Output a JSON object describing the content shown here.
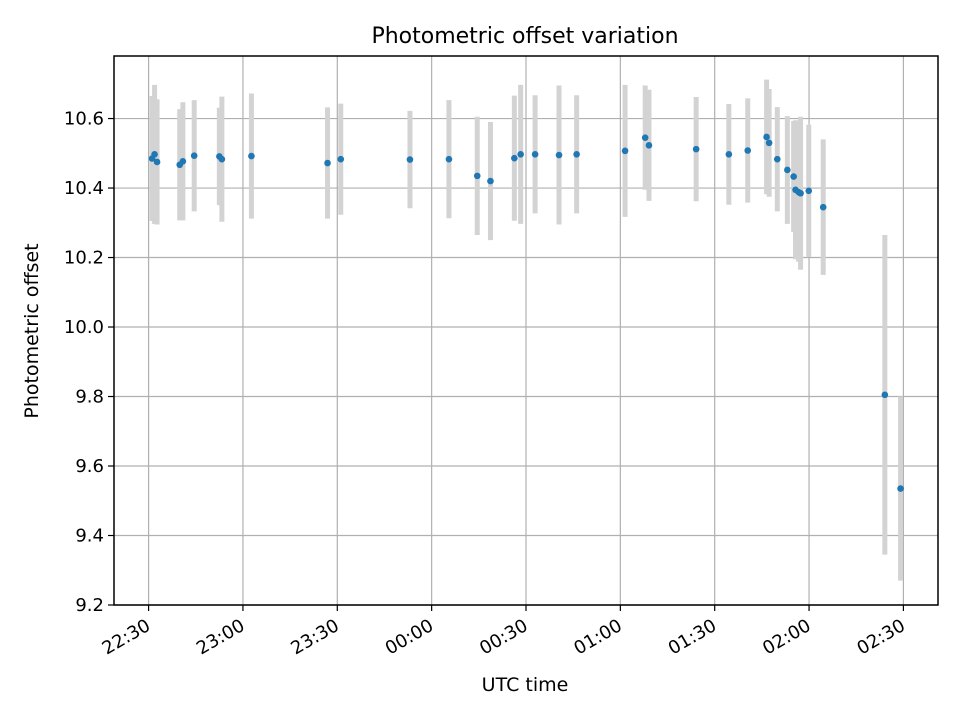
{
  "chart_data": {
    "type": "scatter",
    "title": "Photometric offset variation",
    "xlabel": "UTC time",
    "ylabel": "Photometric offset",
    "grid": true,
    "colors": {
      "points": "#1f77b4",
      "errorbars": "#d3d3d3",
      "grid": "#b0b0b0"
    },
    "xlim": [
      "22:19",
      "02:41"
    ],
    "ylim": [
      9.2,
      10.78
    ],
    "x_ticks": [
      {
        "t": "22:30",
        "label": "22:30"
      },
      {
        "t": "23:00",
        "label": "23:00"
      },
      {
        "t": "23:30",
        "label": "23:30"
      },
      {
        "t": "00:00",
        "label": "00:00"
      },
      {
        "t": "00:30",
        "label": "00:30"
      },
      {
        "t": "01:00",
        "label": "01:00"
      },
      {
        "t": "01:30",
        "label": "01:30"
      },
      {
        "t": "02:00",
        "label": "02:00"
      },
      {
        "t": "02:30",
        "label": "02:30"
      }
    ],
    "y_ticks": [
      "9.2",
      "9.4",
      "9.6",
      "9.8",
      "10.0",
      "10.2",
      "10.4",
      "10.6"
    ],
    "points": [
      {
        "t": "22:31:06",
        "y": 10.485,
        "err": 0.18
      },
      {
        "t": "22:31:54",
        "y": 10.497,
        "err": 0.2
      },
      {
        "t": "22:32:42",
        "y": 10.475,
        "err": 0.18
      },
      {
        "t": "22:39:54",
        "y": 10.467,
        "err": 0.16
      },
      {
        "t": "22:40:54",
        "y": 10.477,
        "err": 0.17
      },
      {
        "t": "22:44:30",
        "y": 10.493,
        "err": 0.16
      },
      {
        "t": "22:52:30",
        "y": 10.491,
        "err": 0.14
      },
      {
        "t": "22:53:18",
        "y": 10.483,
        "err": 0.18
      },
      {
        "t": "23:02:42",
        "y": 10.492,
        "err": 0.18
      },
      {
        "t": "23:26:54",
        "y": 10.472,
        "err": 0.16
      },
      {
        "t": "23:31:06",
        "y": 10.483,
        "err": 0.16
      },
      {
        "t": "23:53:06",
        "y": 10.482,
        "err": 0.14
      },
      {
        "t": "00:05:30",
        "y": 10.483,
        "err": 0.17
      },
      {
        "t": "00:14:30",
        "y": 10.435,
        "err": 0.17
      },
      {
        "t": "00:18:42",
        "y": 10.42,
        "err": 0.17
      },
      {
        "t": "00:26:18",
        "y": 10.486,
        "err": 0.18
      },
      {
        "t": "00:28:18",
        "y": 10.497,
        "err": 0.2
      },
      {
        "t": "00:32:54",
        "y": 10.497,
        "err": 0.17
      },
      {
        "t": "00:40:30",
        "y": 10.495,
        "err": 0.2
      },
      {
        "t": "00:46:06",
        "y": 10.497,
        "err": 0.17
      },
      {
        "t": "01:01:30",
        "y": 10.507,
        "err": 0.19
      },
      {
        "t": "01:07:54",
        "y": 10.545,
        "err": 0.15
      },
      {
        "t": "01:09:06",
        "y": 10.523,
        "err": 0.16
      },
      {
        "t": "01:24:06",
        "y": 10.512,
        "err": 0.15
      },
      {
        "t": "01:34:30",
        "y": 10.497,
        "err": 0.145
      },
      {
        "t": "01:40:30",
        "y": 10.508,
        "err": 0.15
      },
      {
        "t": "01:46:30",
        "y": 10.547,
        "err": 0.165
      },
      {
        "t": "01:47:18",
        "y": 10.53,
        "err": 0.155
      },
      {
        "t": "01:49:54",
        "y": 10.483,
        "err": 0.15
      },
      {
        "t": "01:53:06",
        "y": 10.452,
        "err": 0.155
      },
      {
        "t": "01:55:06",
        "y": 10.433,
        "err": 0.16
      },
      {
        "t": "01:55:42",
        "y": 10.395,
        "err": 0.2
      },
      {
        "t": "01:56:42",
        "y": 10.388,
        "err": 0.2
      },
      {
        "t": "01:57:18",
        "y": 10.385,
        "err": 0.22
      },
      {
        "t": "01:59:54",
        "y": 10.392,
        "err": 0.19
      },
      {
        "t": "02:04:30",
        "y": 10.345,
        "err": 0.195
      },
      {
        "t": "02:24:06",
        "y": 9.805,
        "err": 0.46
      },
      {
        "t": "02:29:06",
        "y": 9.535,
        "err": 0.265
      }
    ]
  }
}
